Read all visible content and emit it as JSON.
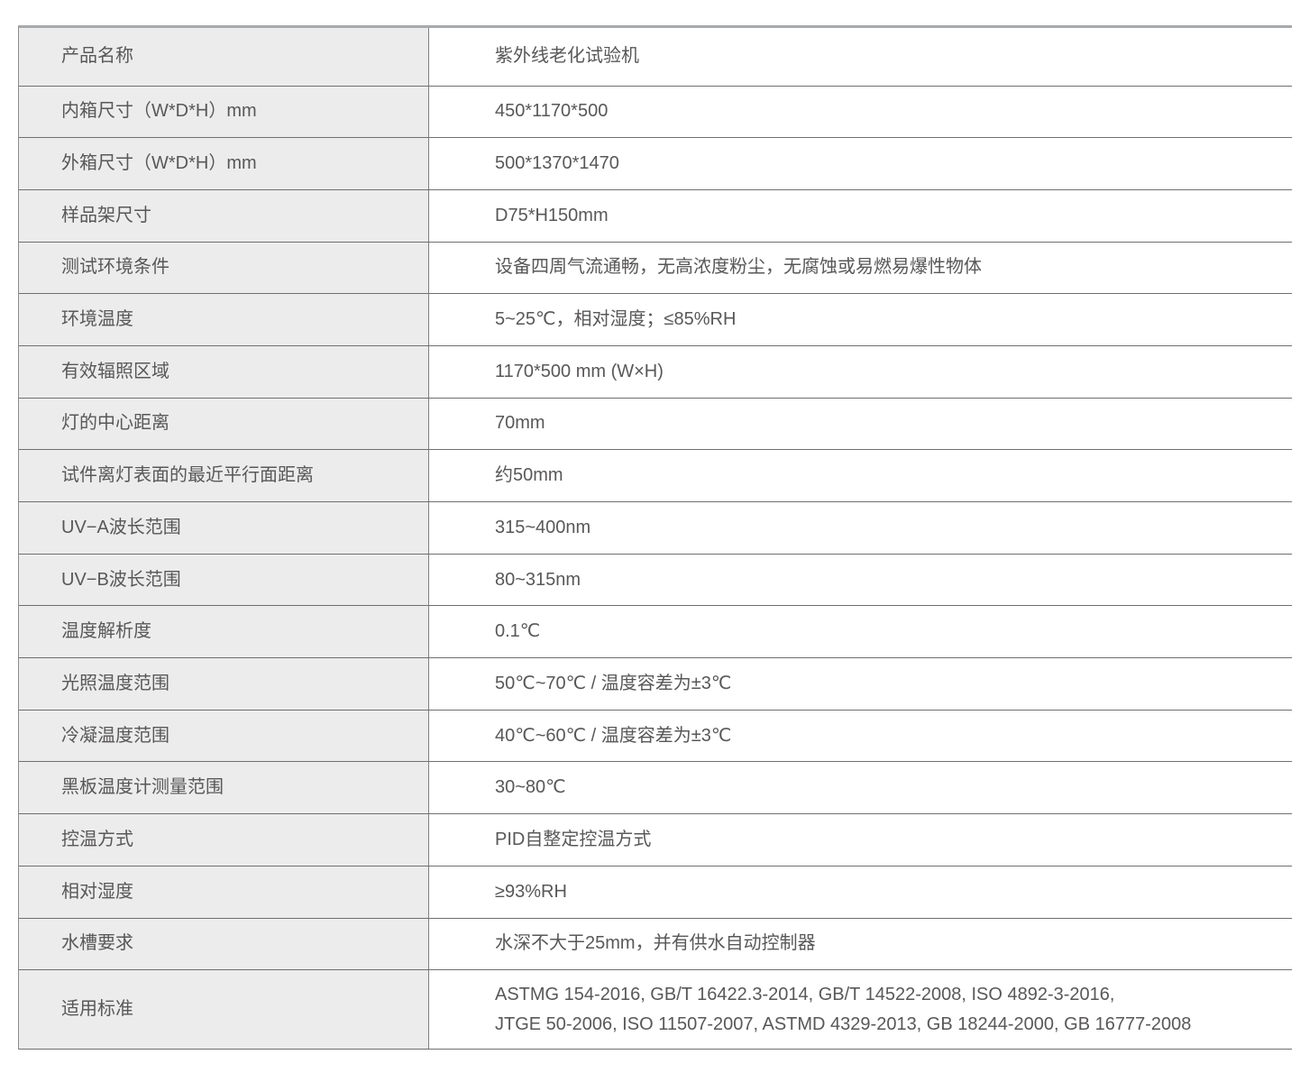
{
  "colors": {
    "label_bg": "#ececed",
    "row_line": "#6e6f71",
    "top_border": "#a8a9ab",
    "text": "#595757"
  },
  "table": {
    "rows": [
      {
        "label": "产品名称",
        "value": "紫外线老化试验机"
      },
      {
        "label": "内箱尺寸（W*D*H）mm",
        "value": "450*1170*500"
      },
      {
        "label": "外箱尺寸（W*D*H）mm",
        "value": "500*1370*1470"
      },
      {
        "label": "样品架尺寸",
        "value": "D75*H150mm"
      },
      {
        "label": "测试环境条件",
        "value": "设备四周气流通畅，无高浓度粉尘，无腐蚀或易燃易爆性物体"
      },
      {
        "label": "环境温度",
        "value": "5~25℃，相对湿度；≤85%RH"
      },
      {
        "label": "有效辐照区域",
        "value": "1170*500 mm (W×H)"
      },
      {
        "label": "灯的中心距离",
        "value": "70mm"
      },
      {
        "label": "试件离灯表面的最近平行面距离",
        "value": "约50mm"
      },
      {
        "label": "UV−A波长范围",
        "value": "315~400nm"
      },
      {
        "label": "UV−B波长范围",
        "value": "80~315nm"
      },
      {
        "label": "温度解析度",
        "value": "0.1℃"
      },
      {
        "label": "光照温度范围",
        "value": "50℃~70℃ / 温度容差为±3℃"
      },
      {
        "label": "冷凝温度范围",
        "value": "40℃~60℃ / 温度容差为±3℃"
      },
      {
        "label": "黑板温度计测量范围",
        "value": "30~80℃"
      },
      {
        "label": "控温方式",
        "value": "PID自整定控温方式"
      },
      {
        "label": "相对湿度",
        "value": "≥93%RH"
      },
      {
        "label": "水槽要求",
        "value": "水深不大于25mm，并有供水自动控制器"
      },
      {
        "label": "适用标准",
        "value": "ASTMG 154-2016, GB/T 16422.3-2014, GB/T 14522-2008, ISO 4892-3-2016,\nJTGE 50-2006, ISO 11507-2007, ASTMD 4329-2013, GB 18244-2000, GB 16777-2008"
      }
    ]
  }
}
